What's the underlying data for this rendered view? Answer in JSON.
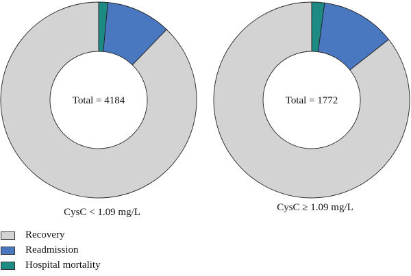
{
  "chart_data": [
    {
      "type": "pie",
      "donut": true,
      "center_label": "Total = 4184",
      "caption": "CysC < 1.09 mg/L",
      "categories": [
        "Recovery",
        "Readmission",
        "Hospital mortality"
      ],
      "values": [
        87.8,
        10.7,
        1.5
      ],
      "unit": "%"
    },
    {
      "type": "pie",
      "donut": true,
      "center_label": "Total = 1772",
      "caption": "CysC ≥ 1.09 mg/L",
      "categories": [
        "Recovery",
        "Readmission",
        "Hospital mortality"
      ],
      "values": [
        85.6,
        12.3,
        2.1
      ],
      "unit": "%"
    }
  ],
  "legend": {
    "placement": "bottom-left",
    "items": [
      {
        "label": "Recovery",
        "color": "#d3d3d3"
      },
      {
        "label": "Readmission",
        "color": "#4a78c0"
      },
      {
        "label": "Hospital mortality",
        "color": "#1d8a84"
      }
    ]
  },
  "colors": {
    "recovery": "#d3d3d3",
    "readmission": "#4a78c0",
    "hospital_mortality": "#1d8a84",
    "slice_stroke": "#222222"
  }
}
